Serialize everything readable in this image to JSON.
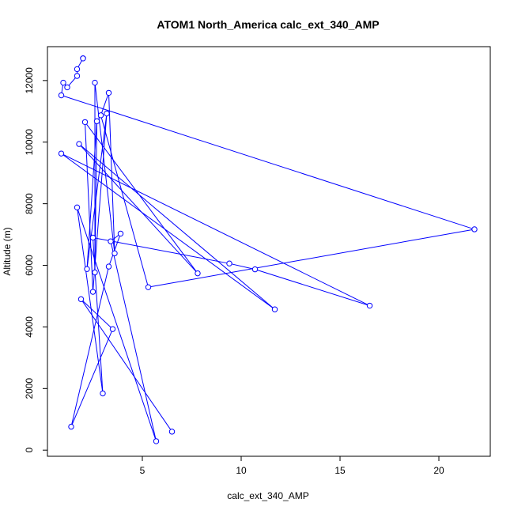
{
  "chart_data": {
    "type": "line",
    "title": "ATOM1 North_America calc_ext_340_AMP",
    "xlabel": "calc_ext_340_AMP",
    "ylabel": "Altitude (m)",
    "xlim": [
      0.2,
      22.6
    ],
    "ylim": [
      -200,
      13100
    ],
    "xticks": [
      5,
      10,
      15,
      20
    ],
    "xtick_labels": [
      "5",
      "10",
      "15",
      "20"
    ],
    "yticks": [
      0,
      2000,
      4000,
      6000,
      8000,
      10000,
      12000
    ],
    "ytick_labels": [
      "0",
      "2000",
      "4000",
      "6000",
      "8000",
      "10000",
      "12000"
    ],
    "grid": false,
    "series": [
      {
        "color": "#0000ff",
        "marker": "open-circle",
        "points": [
          {
            "x": 2.0,
            "y": 12720
          },
          {
            "x": 2.0,
            "y": 12720
          },
          {
            "x": 1.7,
            "y": 12370
          },
          {
            "x": 1.7,
            "y": 12150
          },
          {
            "x": 1.2,
            "y": 11780
          },
          {
            "x": 1.0,
            "y": 11930
          },
          {
            "x": 0.9,
            "y": 11520
          },
          {
            "x": 21.8,
            "y": 7170
          },
          {
            "x": 5.3,
            "y": 5290
          },
          {
            "x": 2.9,
            "y": 10870
          },
          {
            "x": 3.3,
            "y": 11600
          },
          {
            "x": 3.6,
            "y": 6390
          },
          {
            "x": 2.6,
            "y": 11930
          },
          {
            "x": 2.6,
            "y": 5770
          },
          {
            "x": 2.7,
            "y": 10680
          },
          {
            "x": 2.2,
            "y": 5880
          },
          {
            "x": 3.2,
            "y": 10930
          },
          {
            "x": 2.5,
            "y": 5140
          },
          {
            "x": 2.1,
            "y": 10650
          },
          {
            "x": 7.8,
            "y": 5740
          },
          {
            "x": 1.8,
            "y": 9940
          },
          {
            "x": 11.7,
            "y": 4570
          },
          {
            "x": 0.9,
            "y": 9630
          },
          {
            "x": 16.5,
            "y": 4690
          },
          {
            "x": 10.7,
            "y": 5870
          },
          {
            "x": 9.4,
            "y": 6060
          },
          {
            "x": 2.5,
            "y": 6900
          },
          {
            "x": 3.0,
            "y": 1840
          },
          {
            "x": 1.7,
            "y": 7880
          },
          {
            "x": 5.7,
            "y": 290
          },
          {
            "x": 3.4,
            "y": 6780
          },
          {
            "x": 3.9,
            "y": 7030
          },
          {
            "x": 3.3,
            "y": 5960
          },
          {
            "x": 1.4,
            "y": 760
          },
          {
            "x": 3.5,
            "y": 3930
          },
          {
            "x": 1.9,
            "y": 4900
          },
          {
            "x": 6.5,
            "y": 600
          }
        ]
      }
    ]
  }
}
